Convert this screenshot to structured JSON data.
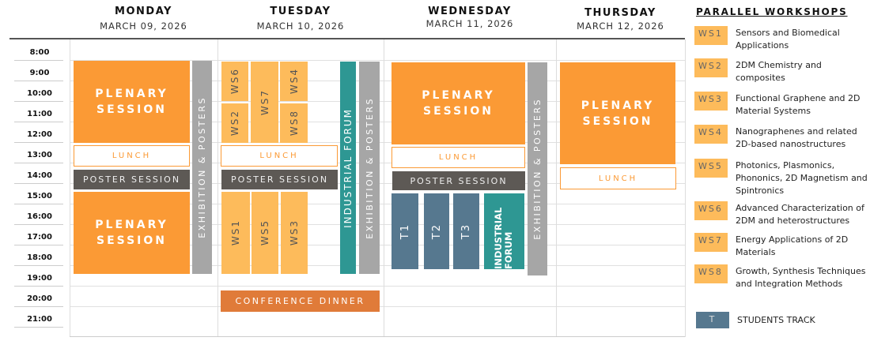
{
  "days": [
    {
      "name": "MONDAY",
      "date": "MARCH 09, 2026"
    },
    {
      "name": "TUESDAY",
      "date": "MARCH 10, 2026"
    },
    {
      "name": "WEDNESDAY",
      "date": "MARCH 11, 2026"
    },
    {
      "name": "THURSDAY",
      "date": "MARCH 12, 2026"
    }
  ],
  "times": [
    "8:00",
    "9:00",
    "10:00",
    "11:00",
    "12:00",
    "13:00",
    "14:00",
    "15:00",
    "16:00",
    "17:00",
    "18:00",
    "19:00",
    "20:00",
    "21:00"
  ],
  "events": {
    "plenary": "PLENARY SESSION",
    "lunch": "LUNCH",
    "poster": "POSTER SESSION",
    "exhibition": "EXHIBITION & POSTERS",
    "industrial": "INDUSTRIAL FORUM",
    "dinner": "CONFERENCE DINNER",
    "ws1": "WS1",
    "ws2": "WS2",
    "ws3": "WS3",
    "ws4": "WS4",
    "ws5": "WS5",
    "ws6": "WS6",
    "ws7": "WS7",
    "ws8": "WS8",
    "t1": "T1",
    "t2": "T2",
    "t3": "T3"
  },
  "legend": {
    "title": "PARALLEL WORKSHOPS",
    "items": [
      {
        "code": "WS1",
        "label": "Sensors and Biomedical Applications"
      },
      {
        "code": "WS2",
        "label": "2DM Chemistry and composites"
      },
      {
        "code": "WS3",
        "label": "Functional Graphene and 2D Material Systems"
      },
      {
        "code": "WS4",
        "label": "Nanographenes and related 2D-based nanostructures"
      },
      {
        "code": "WS5",
        "label": "Photonics, Plasmonics, Phononics, 2D Magnetism and Spintronics"
      },
      {
        "code": "WS6",
        "label": "Advanced Characterization of 2DM and heterostructures"
      },
      {
        "code": "WS7",
        "label": "Energy Applications of 2D Materials"
      },
      {
        "code": "WS8",
        "label": "Growth, Synthesis Techniques and Integration Methods"
      }
    ],
    "students": {
      "code": "T",
      "label": "STUDENTS TRACK"
    }
  },
  "colors": {
    "plenary": "#fb9a35",
    "workshop": "#fdbb5b",
    "exhibition": "#a6a6a6",
    "industrial": "#2e9793",
    "students": "#56788f",
    "poster": "#5d5955",
    "dinner": "#e07b39"
  }
}
